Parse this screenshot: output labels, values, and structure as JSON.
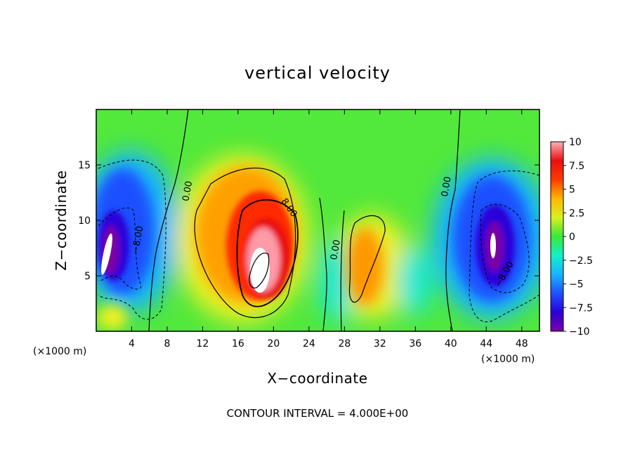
{
  "chart_data": {
    "type": "heatmap",
    "title": "vertical velocity",
    "xlabel": "X−coordinate",
    "ylabel": "Z−coordinate",
    "x_unit_left": "(×1000 m)",
    "x_unit_right": "(×1000 m)",
    "xlim": [
      0,
      50
    ],
    "ylim": [
      0,
      20
    ],
    "xticks": [
      4,
      8,
      12,
      16,
      20,
      24,
      28,
      32,
      36,
      40,
      44,
      48
    ],
    "yticks": [
      5,
      10,
      15
    ],
    "colorbar": {
      "range": [
        -10,
        10
      ],
      "ticks": [
        10,
        7.5,
        5,
        2.5,
        0,
        -2.5,
        -5,
        -7.5,
        -10
      ],
      "tick_labels": [
        "10",
        "7.5",
        "5",
        "2.5",
        "0",
        "−2.5",
        "−5",
        "−7.5",
        "−10"
      ],
      "colors": [
        "#7a00a8",
        "#2a00d8",
        "#1e50ff",
        "#18b4ff",
        "#12f0c8",
        "#38e838",
        "#d8f020",
        "#ffb800",
        "#ff3a00",
        "#e81010",
        "#ffb0b8"
      ]
    },
    "contour_labels": [
      {
        "text": "0.00",
        "x": 10.6,
        "y": 12.6,
        "angle": -80
      },
      {
        "text": "0.00",
        "x": 27.3,
        "y": 7.3,
        "angle": -80
      },
      {
        "text": "0.00",
        "x": 39.8,
        "y": 13.0,
        "angle": -80
      },
      {
        "text": "8.00",
        "x": 21.5,
        "y": 11.0,
        "angle": 55
      },
      {
        "text": "−8.00",
        "x": 5.0,
        "y": 8.2,
        "angle": -80
      },
      {
        "text": "−8.00",
        "x": 46.3,
        "y": 5.0,
        "angle": -60
      }
    ],
    "features": [
      {
        "name": "updraft-core",
        "x": 18.5,
        "z": 6.0,
        "w": 12.0
      },
      {
        "name": "updraft-upper",
        "x": 19.0,
        "z": 10.5,
        "w": 8.5
      },
      {
        "name": "downdraft-left",
        "x": 1.3,
        "z": 7.5,
        "w": -12.0
      },
      {
        "name": "downdraft-right",
        "x": 45.4,
        "z": 7.5,
        "w": -10.5
      },
      {
        "name": "updraft-secondary",
        "x": 30.8,
        "z": 6.5,
        "w": 6.5
      }
    ],
    "footer": "CONTOUR INTERVAL = 4.000E+00"
  }
}
